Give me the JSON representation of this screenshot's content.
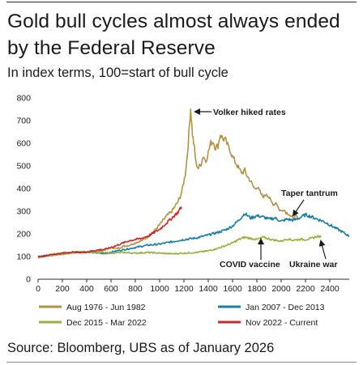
{
  "header": {
    "title_line1": "Gold bull cycles almost always ended",
    "title_line2": "by the Federal Reserve",
    "subtitle": "In index terms, 100=start of bull cycle"
  },
  "footer": {
    "source": "Source: Bloomberg, UBS as of January 2026"
  },
  "chart_data": {
    "type": "line",
    "title": "Gold bull cycles almost always ended by the Federal Reserve",
    "subtitle": "In index terms, 100=start of bull cycle",
    "xlim": [
      0,
      2560
    ],
    "ylim": [
      0,
      800
    ],
    "x_ticks": [
      0,
      200,
      400,
      600,
      800,
      1000,
      1200,
      1400,
      1600,
      1800,
      2000,
      2200,
      2400
    ],
    "y_ticks": [
      0,
      100,
      200,
      300,
      400,
      500,
      600,
      700,
      800
    ],
    "grid": false,
    "legend_position": "bottom",
    "series": [
      {
        "name": "Aug 1976 - Jun 1982",
        "color": "#B39245",
        "points": [
          [
            0,
            100
          ],
          [
            100,
            104
          ],
          [
            200,
            110
          ],
          [
            300,
            118
          ],
          [
            400,
            122
          ],
          [
            500,
            124
          ],
          [
            550,
            130
          ],
          [
            600,
            140
          ],
          [
            650,
            135
          ],
          [
            700,
            145
          ],
          [
            750,
            150
          ],
          [
            800,
            160
          ],
          [
            850,
            170
          ],
          [
            900,
            185
          ],
          [
            950,
            210
          ],
          [
            1000,
            240
          ],
          [
            1050,
            275
          ],
          [
            1100,
            300
          ],
          [
            1150,
            340
          ],
          [
            1180,
            380
          ],
          [
            1210,
            460
          ],
          [
            1230,
            560
          ],
          [
            1245,
            680
          ],
          [
            1255,
            755
          ],
          [
            1270,
            640
          ],
          [
            1285,
            580
          ],
          [
            1300,
            510
          ],
          [
            1320,
            490
          ],
          [
            1340,
            510
          ],
          [
            1360,
            545
          ],
          [
            1380,
            520
          ],
          [
            1400,
            560
          ],
          [
            1420,
            600
          ],
          [
            1440,
            610
          ],
          [
            1460,
            580
          ],
          [
            1480,
            590
          ],
          [
            1500,
            640
          ],
          [
            1520,
            620
          ],
          [
            1540,
            615
          ],
          [
            1560,
            590
          ],
          [
            1580,
            570
          ],
          [
            1600,
            540
          ],
          [
            1620,
            520
          ],
          [
            1640,
            500
          ],
          [
            1660,
            480
          ],
          [
            1680,
            470
          ],
          [
            1700,
            480
          ],
          [
            1720,
            455
          ],
          [
            1740,
            440
          ],
          [
            1760,
            420
          ],
          [
            1780,
            400
          ],
          [
            1800,
            410
          ],
          [
            1820,
            390
          ],
          [
            1840,
            370
          ],
          [
            1860,
            365
          ],
          [
            1880,
            380
          ],
          [
            1900,
            360
          ],
          [
            1920,
            340
          ],
          [
            1940,
            330
          ],
          [
            1960,
            340
          ],
          [
            1980,
            310
          ],
          [
            2000,
            300
          ],
          [
            2020,
            310
          ],
          [
            2040,
            295
          ],
          [
            2060,
            290
          ],
          [
            2080,
            275
          ],
          [
            2100,
            270
          ],
          [
            2120,
            280
          ],
          [
            2140,
            265
          ]
        ]
      },
      {
        "name": "Jan 2007 - Dec 2013",
        "color": "#1B7EA0",
        "points": [
          [
            0,
            100
          ],
          [
            100,
            108
          ],
          [
            200,
            115
          ],
          [
            300,
            118
          ],
          [
            400,
            120
          ],
          [
            500,
            115
          ],
          [
            550,
            112
          ],
          [
            600,
            120
          ],
          [
            650,
            125
          ],
          [
            700,
            130
          ],
          [
            800,
            140
          ],
          [
            900,
            150
          ],
          [
            1000,
            155
          ],
          [
            1100,
            165
          ],
          [
            1200,
            175
          ],
          [
            1300,
            182
          ],
          [
            1400,
            195
          ],
          [
            1500,
            210
          ],
          [
            1550,
            220
          ],
          [
            1600,
            235
          ],
          [
            1650,
            260
          ],
          [
            1700,
            290
          ],
          [
            1750,
            270
          ],
          [
            1800,
            280
          ],
          [
            1850,
            275
          ],
          [
            1900,
            265
          ],
          [
            1950,
            270
          ],
          [
            2000,
            255
          ],
          [
            2050,
            265
          ],
          [
            2100,
            260
          ],
          [
            2150,
            270
          ],
          [
            2200,
            285
          ],
          [
            2250,
            275
          ],
          [
            2300,
            265
          ],
          [
            2350,
            255
          ],
          [
            2400,
            240
          ],
          [
            2450,
            225
          ],
          [
            2500,
            210
          ],
          [
            2560,
            190
          ]
        ]
      },
      {
        "name": "Dec 2015 - Mar 2022",
        "color": "#98AE42",
        "points": [
          [
            0,
            95
          ],
          [
            100,
            105
          ],
          [
            200,
            115
          ],
          [
            300,
            118
          ],
          [
            400,
            120
          ],
          [
            500,
            118
          ],
          [
            600,
            115
          ],
          [
            700,
            118
          ],
          [
            800,
            115
          ],
          [
            900,
            118
          ],
          [
            1000,
            115
          ],
          [
            1100,
            112
          ],
          [
            1200,
            115
          ],
          [
            1300,
            118
          ],
          [
            1400,
            125
          ],
          [
            1500,
            140
          ],
          [
            1600,
            160
          ],
          [
            1650,
            175
          ],
          [
            1700,
            185
          ],
          [
            1750,
            180
          ],
          [
            1800,
            175
          ],
          [
            1850,
            185
          ],
          [
            1900,
            178
          ],
          [
            1950,
            172
          ],
          [
            2000,
            168
          ],
          [
            2050,
            178
          ],
          [
            2100,
            172
          ],
          [
            2150,
            176
          ],
          [
            2200,
            175
          ],
          [
            2250,
            180
          ],
          [
            2300,
            190
          ],
          [
            2330,
            185
          ]
        ]
      },
      {
        "name": "Nov 2022 - Current",
        "color": "#C8282A",
        "points": [
          [
            0,
            100
          ],
          [
            50,
            102
          ],
          [
            100,
            108
          ],
          [
            150,
            112
          ],
          [
            200,
            115
          ],
          [
            250,
            118
          ],
          [
            300,
            120
          ],
          [
            350,
            118
          ],
          [
            400,
            120
          ],
          [
            450,
            125
          ],
          [
            500,
            130
          ],
          [
            550,
            132
          ],
          [
            600,
            140
          ],
          [
            650,
            150
          ],
          [
            700,
            160
          ],
          [
            750,
            170
          ],
          [
            800,
            175
          ],
          [
            850,
            180
          ],
          [
            900,
            190
          ],
          [
            950,
            205
          ],
          [
            1000,
            220
          ],
          [
            1050,
            245
          ],
          [
            1100,
            270
          ],
          [
            1150,
            295
          ],
          [
            1180,
            320
          ]
        ]
      }
    ],
    "annotations": [
      {
        "text": "Volker hiked rates"
      },
      {
        "text": "Taper tantrum"
      },
      {
        "text": "COVID vaccine"
      },
      {
        "text": "Ukraine war"
      }
    ]
  }
}
